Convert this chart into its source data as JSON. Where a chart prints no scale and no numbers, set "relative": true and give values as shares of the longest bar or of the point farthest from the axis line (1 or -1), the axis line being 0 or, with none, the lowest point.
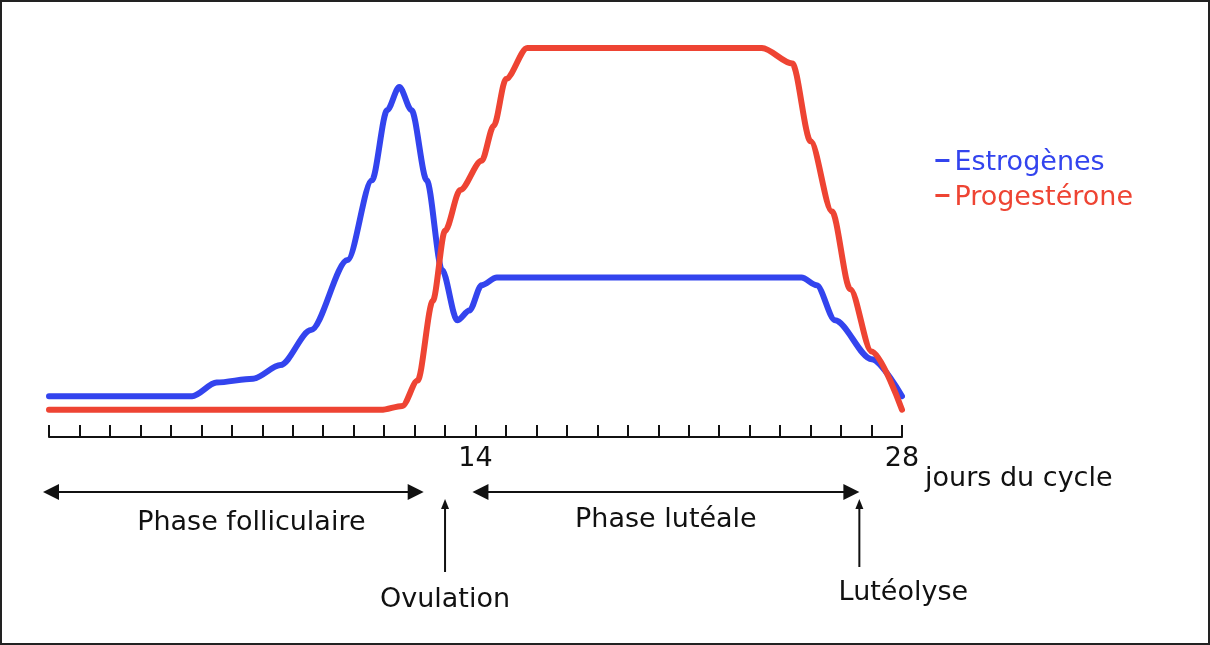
{
  "chart_data": {
    "type": "line",
    "relative": true,
    "xlabel": "jours du cycle",
    "xlim": [
      0,
      28
    ],
    "xticks": [
      {
        "value": 0,
        "label": null
      },
      {
        "value": 1,
        "label": null
      },
      {
        "value": 2,
        "label": null
      },
      {
        "value": 3,
        "label": null
      },
      {
        "value": 4,
        "label": null
      },
      {
        "value": 5,
        "label": null
      },
      {
        "value": 6,
        "label": null
      },
      {
        "value": 7,
        "label": null
      },
      {
        "value": 8,
        "label": null
      },
      {
        "value": 9,
        "label": null
      },
      {
        "value": 10,
        "label": null
      },
      {
        "value": 11,
        "label": null
      },
      {
        "value": 12,
        "label": null
      },
      {
        "value": 13,
        "label": null
      },
      14,
      {
        "value": 15,
        "label": null
      },
      {
        "value": 16,
        "label": null
      },
      {
        "value": 17,
        "label": null
      },
      {
        "value": 18,
        "label": null
      },
      {
        "value": 19,
        "label": null
      },
      {
        "value": 20,
        "label": null
      },
      {
        "value": 21,
        "label": null
      },
      {
        "value": 22,
        "label": null
      },
      {
        "value": 23,
        "label": null
      },
      {
        "value": 24,
        "label": null
      },
      {
        "value": 25,
        "label": null
      },
      {
        "value": 26,
        "label": null
      },
      {
        "value": 27,
        "label": null
      },
      28
    ],
    "grid": false,
    "legend": "right",
    "marker": "none",
    "line_style": "solid",
    "series": [
      {
        "name": "Estrogènes",
        "color": "#3344ee",
        "x": [
          0,
          4.7,
          5.5,
          6.7,
          7.6,
          8.6,
          9.8,
          10.6,
          11.1,
          11.5,
          11.9,
          12.4,
          12.9,
          13.4,
          13.8,
          14.2,
          14.7,
          24.7,
          25.2,
          25.8,
          27.0,
          28
        ],
        "values": [
          0.105,
          0.105,
          0.14,
          0.15,
          0.185,
          0.275,
          0.455,
          0.66,
          0.84,
          0.9,
          0.84,
          0.66,
          0.43,
          0.3,
          0.325,
          0.39,
          0.41,
          0.41,
          0.39,
          0.3,
          0.2,
          0.105
        ]
      },
      {
        "name": "Progestérone",
        "color": "#ee4433",
        "x": [
          0,
          10.9,
          11.6,
          12.1,
          12.6,
          13.0,
          13.5,
          14.2,
          14.6,
          15.0,
          15.7,
          23.4,
          24.4,
          25.0,
          25.7,
          26.3,
          27.0,
          28
        ],
        "values": [
          0.07,
          0.07,
          0.08,
          0.145,
          0.35,
          0.53,
          0.635,
          0.71,
          0.8,
          0.92,
          1,
          1,
          0.96,
          0.76,
          0.58,
          0.38,
          0.22,
          0.07
        ]
      }
    ],
    "annotations": [
      "Phase folliculaire",
      "Ovulation",
      "Phase lutéale",
      "Lutéolyse"
    ]
  }
}
